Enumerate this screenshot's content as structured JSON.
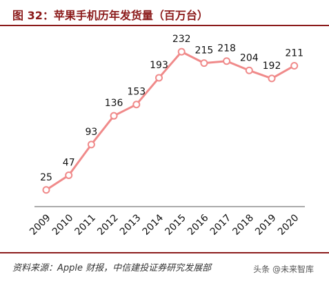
{
  "title": "图 32：苹果手机历年发货量（百万台）",
  "source": "资料来源：Apple 财报，中信建投证券研究发展部",
  "watermark": "头条 @未来智库",
  "colors": {
    "line": "#f08a8a",
    "marker_fill": "#ffffff",
    "accent": "#8b1a1a",
    "axis": "#555555"
  },
  "chart_data": {
    "type": "line",
    "categories": [
      "2009",
      "2010",
      "2011",
      "2012",
      "2013",
      "2014",
      "2015",
      "2016",
      "2017",
      "2018",
      "2019",
      "2020"
    ],
    "series": [
      {
        "values": [
          25,
          47,
          93,
          136,
          153,
          193,
          232,
          215,
          218,
          204,
          192,
          211
        ]
      }
    ],
    "data_labels": [
      "25",
      "47",
      "93",
      "136",
      "153",
      "193",
      "232",
      "215",
      "218",
      "204",
      "192",
      "211"
    ],
    "ylim": [
      0,
      260
    ],
    "xlabel": "",
    "ylabel": "",
    "grid": false,
    "legend": "none"
  }
}
